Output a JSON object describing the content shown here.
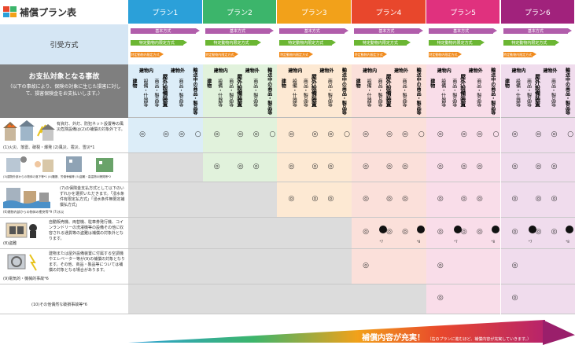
{
  "header": {
    "title": "補償プラン表"
  },
  "colors": {
    "plan1": "#2ba0d9",
    "plan2": "#3cb56b",
    "plan3": "#f2a11a",
    "plan4": "#e8472c",
    "plan5": "#e0317e",
    "plan6": "#a1227c",
    "plan1_bg": "#dcedf8",
    "plan2_bg": "#e1f2dc",
    "plan3_bg": "#fde9d3",
    "plan4_bg": "#fbe0da",
    "plan5_bg": "#f9dde9",
    "plan6_bg": "#f0dced"
  },
  "plans": [
    {
      "label": "プラン1"
    },
    {
      "label": "プラン2"
    },
    {
      "label": "プラン3"
    },
    {
      "label": "プラン4"
    },
    {
      "label": "プラン5"
    },
    {
      "label": "プラン6"
    }
  ],
  "left": {
    "methods_label": "引受方式",
    "accident_label": "お支払対象となる事故",
    "accident_note": "（以下の事故により、保険の対象に生じた損害に対して、損害保険金をお支払いします。）"
  },
  "methods": {
    "base": "基本方式",
    "zone": "特定動物内限定方式",
    "short": "特定動物内限定方式"
  },
  "subheaders": {
    "building_in": "建物内",
    "building_out": "建物外",
    "building": "建物",
    "equip": "設備・什器等",
    "goods": "商品・製品等",
    "outdoor": "屋外設備装置",
    "transit": "輸送中の商品・製品等"
  },
  "rows": [
    {
      "label": "(1)火災、落雷、破裂・爆発 (2)風災、雹災、雪災*1",
      "desc": "有資灯、外灯、防犯ネット設置等の風災危険設備は(2)の補償の対象外です。"
    },
    {
      "label": "(3)建物外部からの物体の落下等*1 (4)騒擾、労働争議等 (5)盗難・高温物の爆発等*2",
      "desc": ""
    },
    {
      "label": "(6)建物内部からの物体の衝突等*9 (7)水災",
      "desc": "(7)の保険金支払方式として以下のいずれかを選択いただきます。「浸水条件有限定払方式」「浸水条件無限定補償払方式」"
    },
    {
      "label": "(8)盗難",
      "desc": "自動販売機、両替機、駐車券発行機、コインランドリーの洗濯機等の設備その他に収容される通貨等の盗難は補償の対象外となります。"
    },
    {
      "label": "(9)電気的・機械的事故*6",
      "desc": "建物または屋外設備装置に付属する空調機やエレベーター等が(9)の補償の対象となります。その他、商品・製品等については補償の対象となる場合があります。"
    },
    {
      "label": "(10)その他偶然な破損事故等*6",
      "desc": ""
    }
  ],
  "symbols": {
    "circle": "◎",
    "ring": "○",
    "note7": "*7",
    "note8": "*8"
  },
  "footer": {
    "left": "補償内容",
    "right": "補償内容が充実！",
    "right_note": "（右のプランに進むほど、補償内容が充実していきます。）"
  }
}
